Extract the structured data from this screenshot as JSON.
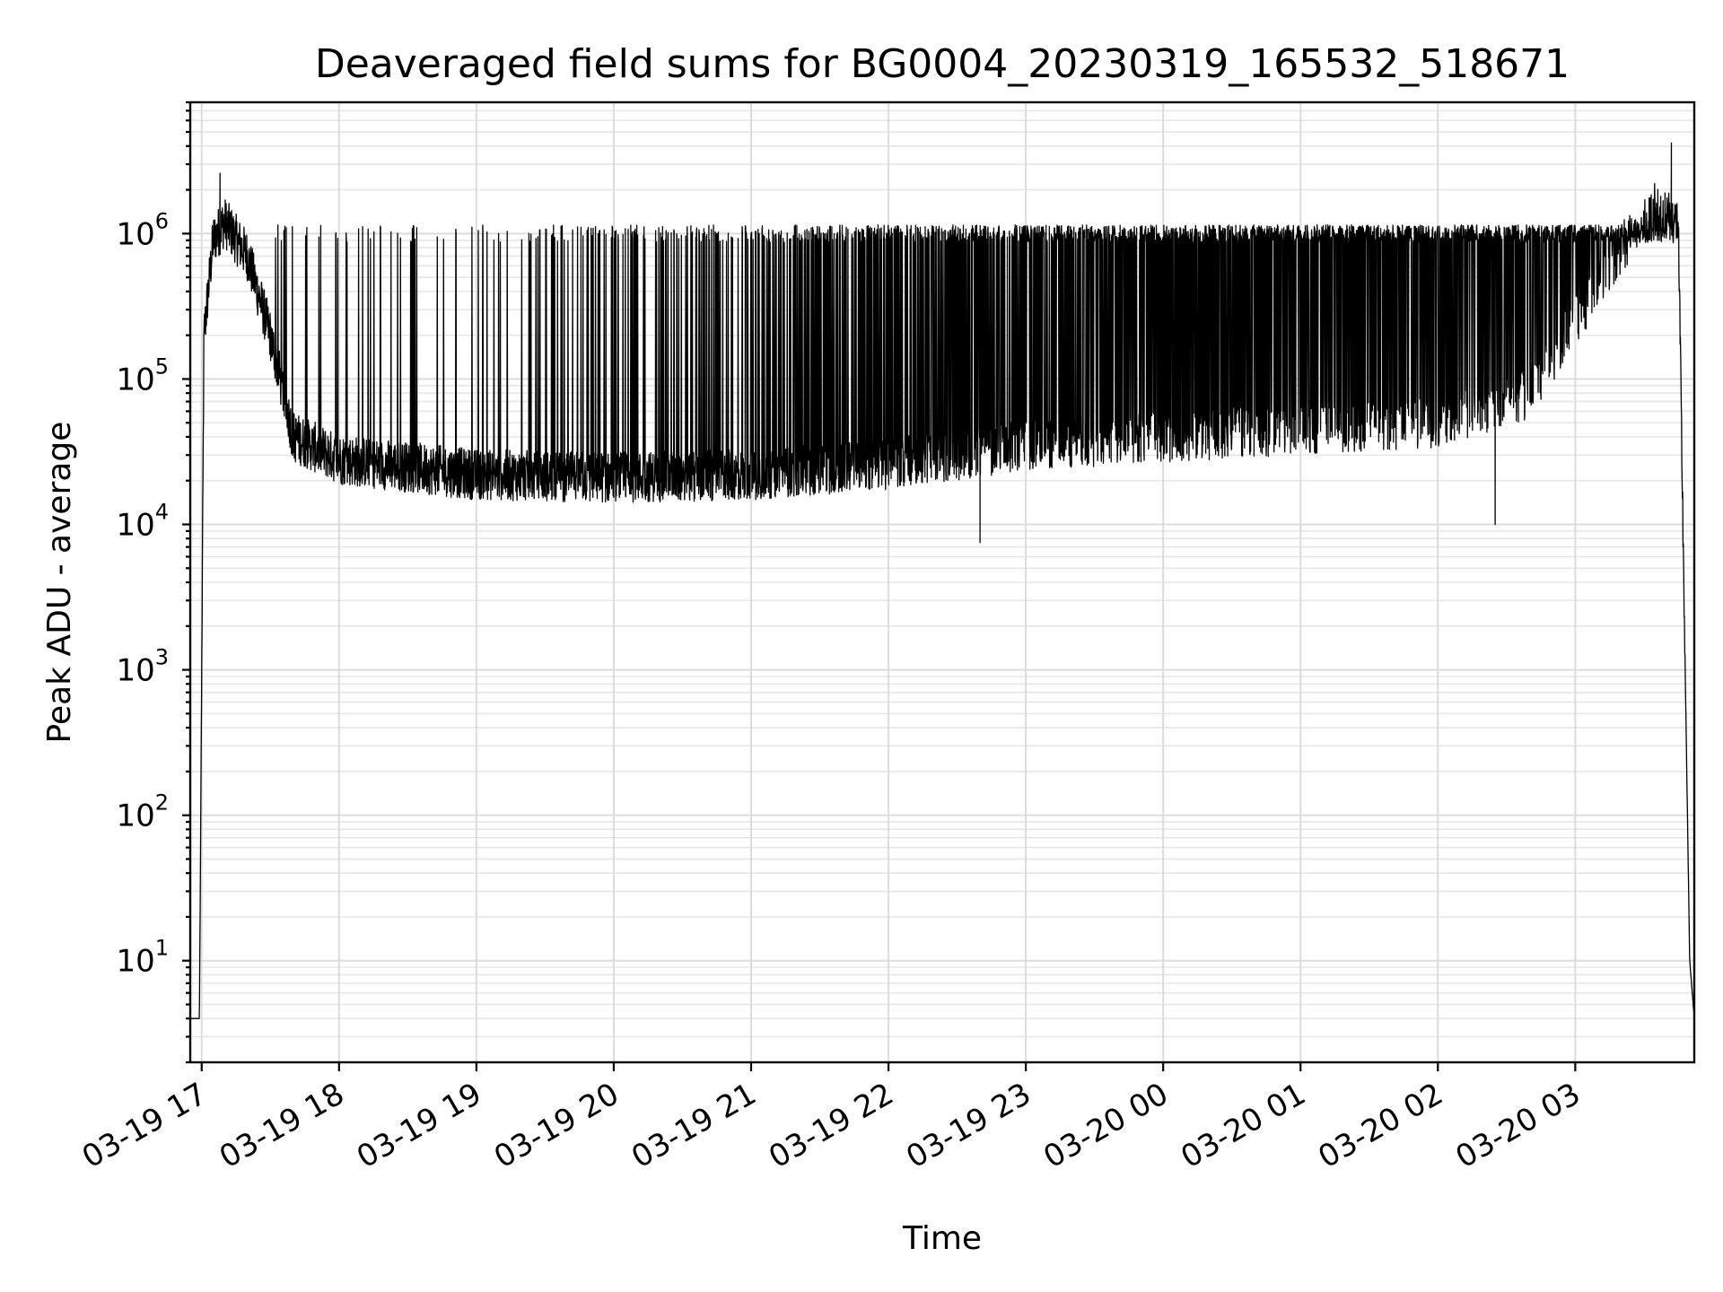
{
  "chart_data": {
    "type": "line",
    "title": "Deaveraged field sums for BG0004_20230319_165532_518671",
    "xlabel": "Time",
    "ylabel": "Peak ADU - average",
    "yscale": "log",
    "ylim": [
      2,
      8000000
    ],
    "xlim": [
      "2023-03-19 16:55",
      "2023-03-20 03:52"
    ],
    "grid": true,
    "x_ticks": [
      {
        "t": "2023-03-19 17:00",
        "label": "03-19 17"
      },
      {
        "t": "2023-03-19 18:00",
        "label": "03-19 18"
      },
      {
        "t": "2023-03-19 19:00",
        "label": "03-19 19"
      },
      {
        "t": "2023-03-19 20:00",
        "label": "03-19 20"
      },
      {
        "t": "2023-03-19 21:00",
        "label": "03-19 21"
      },
      {
        "t": "2023-03-19 22:00",
        "label": "03-19 22"
      },
      {
        "t": "2023-03-19 23:00",
        "label": "03-19 23"
      },
      {
        "t": "2023-03-20 00:00",
        "label": "03-20 00"
      },
      {
        "t": "2023-03-20 01:00",
        "label": "03-20 01"
      },
      {
        "t": "2023-03-20 02:00",
        "label": "03-20 02"
      },
      {
        "t": "2023-03-20 03:00",
        "label": "03-20 03"
      }
    ],
    "y_ticks": [
      {
        "value": 10,
        "base": "10",
        "exp": "1"
      },
      {
        "value": 100,
        "base": "10",
        "exp": "2"
      },
      {
        "value": 1000,
        "base": "10",
        "exp": "3"
      },
      {
        "value": 10000,
        "base": "10",
        "exp": "4"
      },
      {
        "value": 100000,
        "base": "10",
        "exp": "5"
      },
      {
        "value": 1000000,
        "base": "10",
        "exp": "6"
      }
    ],
    "series": [
      {
        "color": "#000000",
        "baseline": [
          {
            "t": "2023-03-19 16:55",
            "y": 4
          },
          {
            "t": "2023-03-19 16:59",
            "y": 4
          },
          {
            "t": "2023-03-19 17:01",
            "y": 200000
          },
          {
            "t": "2023-03-19 17:05",
            "y": 900000
          },
          {
            "t": "2023-03-19 17:10",
            "y": 1200000
          },
          {
            "t": "2023-03-19 17:20",
            "y": 700000
          },
          {
            "t": "2023-03-19 17:30",
            "y": 200000
          },
          {
            "t": "2023-03-19 17:40",
            "y": 40000
          },
          {
            "t": "2023-03-19 18:00",
            "y": 28000
          },
          {
            "t": "2023-03-19 19:00",
            "y": 22000
          },
          {
            "t": "2023-03-19 20:00",
            "y": 21000
          },
          {
            "t": "2023-03-19 21:00",
            "y": 22000
          },
          {
            "t": "2023-03-19 22:00",
            "y": 26000
          },
          {
            "t": "2023-03-19 23:00",
            "y": 35000
          },
          {
            "t": "2023-03-20 00:00",
            "y": 40000
          },
          {
            "t": "2023-03-20 01:00",
            "y": 45000
          },
          {
            "t": "2023-03-20 02:00",
            "y": 50000
          },
          {
            "t": "2023-03-20 02:40",
            "y": 80000
          },
          {
            "t": "2023-03-20 03:00",
            "y": 250000
          },
          {
            "t": "2023-03-20 03:20",
            "y": 800000
          },
          {
            "t": "2023-03-20 03:35",
            "y": 1500000
          },
          {
            "t": "2023-03-20 03:45",
            "y": 1200000
          },
          {
            "t": "2023-03-20 03:50",
            "y": 10
          },
          {
            "t": "2023-03-20 03:52",
            "y": 4
          }
        ],
        "peak_envelope": [
          {
            "t": "2023-03-19 17:00",
            "y": 1000000
          },
          {
            "t": "2023-03-20 03:40",
            "y": 1000000
          }
        ],
        "notable_points": [
          {
            "t": "2023-03-19 17:08",
            "y": 2600000
          },
          {
            "t": "2023-03-19 22:40",
            "y": 7500
          },
          {
            "t": "2023-03-20 02:25",
            "y": 10000
          },
          {
            "t": "2023-03-20 03:42",
            "y": 4200000
          }
        ]
      }
    ]
  }
}
